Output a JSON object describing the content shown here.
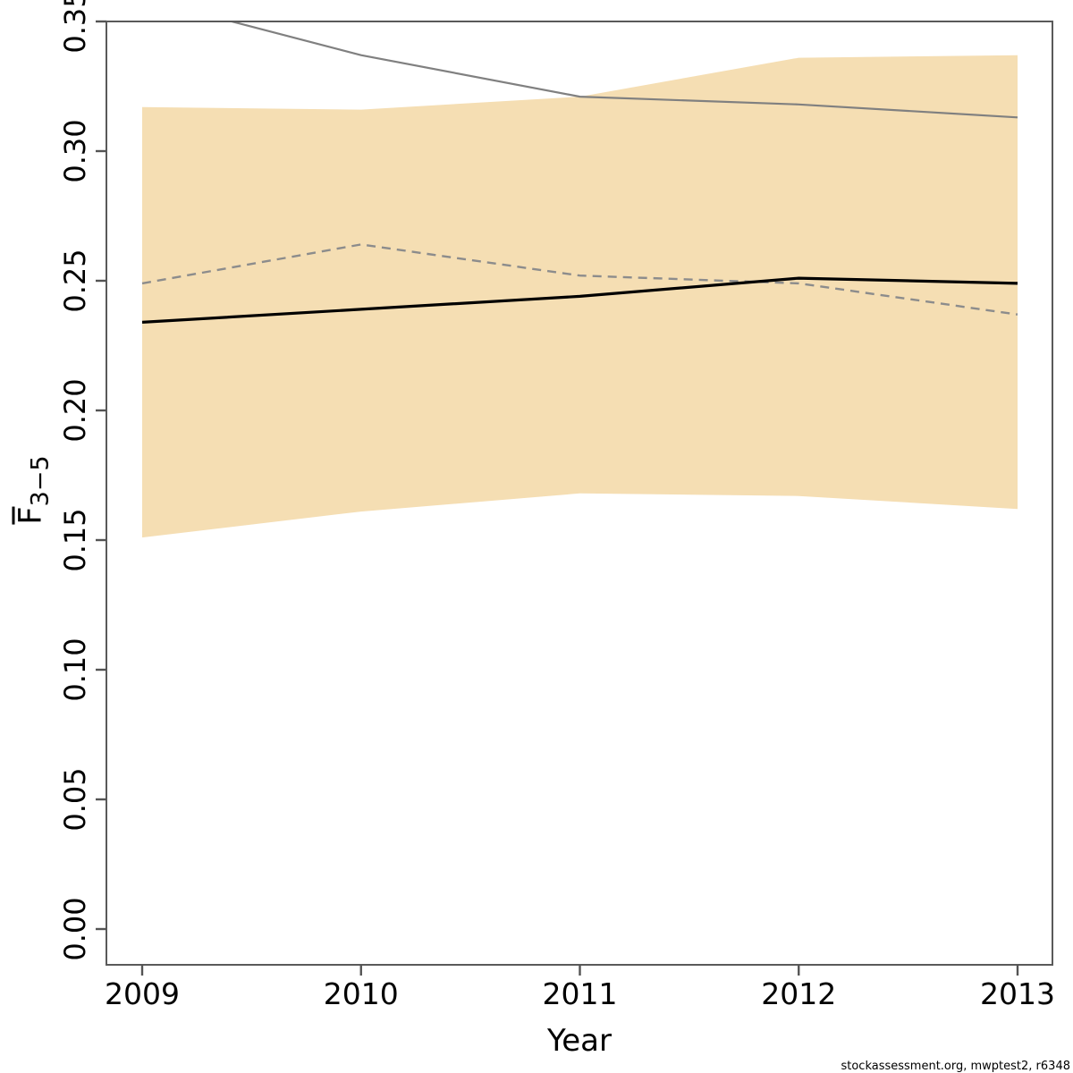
{
  "figure": {
    "footer": "stockassessment.org, mwptest2, r6348",
    "background": "#ffffff"
  },
  "chart_data": {
    "type": "line",
    "title": "",
    "xlabel": "Year",
    "ylabel_base": "F",
    "ylabel_sub": "3−5",
    "x": [
      2009,
      2010,
      2011,
      2012,
      2013
    ],
    "x_ticks": [
      "2009",
      "2010",
      "2011",
      "2012",
      "2013"
    ],
    "y_ticks": [
      "0.00",
      "0.05",
      "0.10",
      "0.15",
      "0.20",
      "0.25",
      "0.30",
      "0.35"
    ],
    "xlim": [
      2008.84,
      2013.16
    ],
    "ylim": [
      -0.014,
      0.35
    ],
    "grid": false,
    "legend": "none",
    "series": [
      {
        "name": "fbar-estimate",
        "style": "solid-black",
        "values": [
          0.234,
          0.239,
          0.244,
          0.251,
          0.249
        ]
      },
      {
        "name": "comparison-run-dashed",
        "style": "dashed-gray",
        "values": [
          0.249,
          0.264,
          0.252,
          0.249,
          0.237
        ]
      },
      {
        "name": "reference-gray",
        "style": "solid-gray",
        "values": [
          0.359,
          0.337,
          0.321,
          0.318,
          0.313
        ]
      }
    ],
    "band": {
      "name": "confidence-band",
      "low": [
        0.151,
        0.161,
        0.168,
        0.167,
        0.162
      ],
      "high": [
        0.317,
        0.316,
        0.321,
        0.336,
        0.337
      ],
      "color": "#f5deb3"
    },
    "colors": {
      "black_line": "#000000",
      "gray_line": "#808080",
      "dashed_line": "#8c8c8c",
      "axis": "#545454",
      "box": "#5a5a5a"
    }
  }
}
